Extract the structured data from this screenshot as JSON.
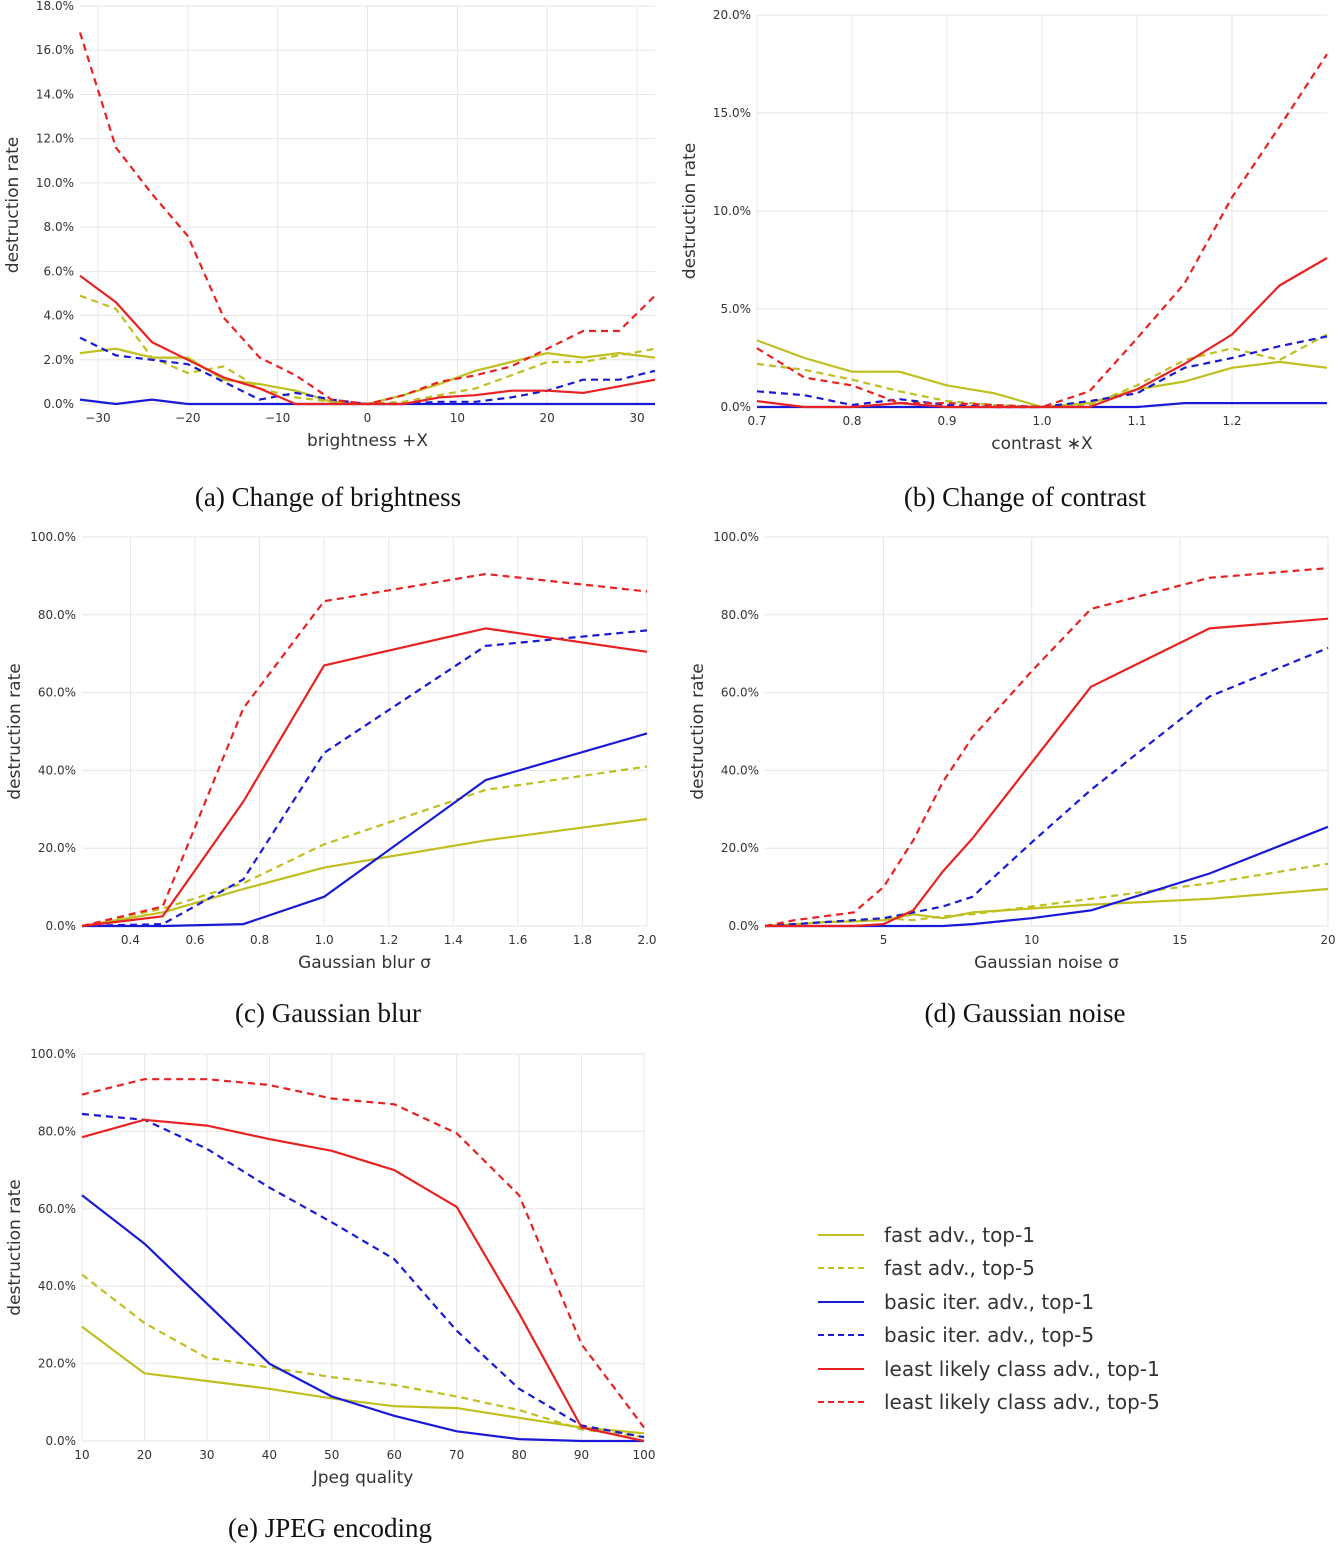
{
  "series_styles": [
    {
      "key": "fast_top1",
      "color": "#bfbf1f",
      "dash": false
    },
    {
      "key": "fast_top5",
      "color": "#bfbf1f",
      "dash": true
    },
    {
      "key": "iter_top1",
      "color": "#1a1ad6",
      "dash": false
    },
    {
      "key": "iter_top5",
      "color": "#1a1ad6",
      "dash": true
    },
    {
      "key": "ll_top1",
      "color": "#e82222",
      "dash": false
    },
    {
      "key": "ll_top5",
      "color": "#e82222",
      "dash": true
    }
  ],
  "legend": {
    "items": [
      {
        "label": "fast adv., top-1",
        "color": "#bfbf1f",
        "dash": false
      },
      {
        "label": "fast adv., top-5",
        "color": "#bfbf1f",
        "dash": true
      },
      {
        "label": "basic iter. adv., top-1",
        "color": "#1a1ad6",
        "dash": false
      },
      {
        "label": "basic iter. adv., top-5",
        "color": "#1a1ad6",
        "dash": true
      },
      {
        "label": "least likely class adv., top-1",
        "color": "#e82222",
        "dash": false
      },
      {
        "label": "least likely class adv., top-5",
        "color": "#e82222",
        "dash": true
      }
    ]
  },
  "chart_data": [
    {
      "type": "line",
      "id": "a",
      "caption": "(a) Change of brightness",
      "xlabel": "brightness +X",
      "ylabel": "destruction rate",
      "xlim": [
        -32,
        32
      ],
      "ylim": [
        0,
        18
      ],
      "xticks": [
        -30,
        -20,
        -10,
        0,
        10,
        20,
        30
      ],
      "xtick_labels": [
        "−30",
        "−20",
        "−10",
        "0",
        "10",
        "20",
        "30"
      ],
      "yticks": [
        0,
        2,
        4,
        6,
        8,
        10,
        12,
        14,
        16,
        18
      ],
      "ytick_labels": [
        "0.0%",
        "2.0%",
        "4.0%",
        "6.0%",
        "8.0%",
        "10.0%",
        "12.0%",
        "14.0%",
        "16.0%",
        "18.0%"
      ],
      "x": [
        -32,
        -28,
        -24,
        -20,
        -16,
        -12,
        -8,
        -4,
        0,
        4,
        8,
        12,
        16,
        20,
        24,
        28,
        32
      ],
      "series": [
        {
          "name": "fast adv., top-1",
          "values": [
            2.3,
            2.5,
            2.1,
            2.1,
            1.1,
            0.9,
            0.6,
            0.1,
            0,
            0.4,
            0.9,
            1.5,
            1.9,
            2.3,
            2.1,
            2.3,
            2.1
          ]
        },
        {
          "name": "fast adv., top-5",
          "values": [
            4.9,
            4.3,
            2.1,
            1.4,
            1.7,
            0.7,
            0.3,
            0.1,
            0,
            0.1,
            0.4,
            0.7,
            1.3,
            1.9,
            1.9,
            2.2,
            2.5
          ]
        },
        {
          "name": "basic iter. adv., top-1",
          "values": [
            0.2,
            0.0,
            0.2,
            0.0,
            0.0,
            0.0,
            0.0,
            0.0,
            0,
            0.0,
            0.0,
            0.0,
            0.0,
            0.0,
            0.0,
            0.0,
            0.0
          ]
        },
        {
          "name": "basic iter. adv., top-5",
          "values": [
            3.0,
            2.2,
            2.0,
            1.8,
            1.0,
            0.2,
            0.5,
            0.2,
            0,
            0.0,
            0.1,
            0.1,
            0.3,
            0.6,
            1.1,
            1.1,
            1.5
          ]
        },
        {
          "name": "least likely class adv., top-1",
          "values": [
            5.8,
            4.6,
            2.8,
            2.0,
            1.2,
            0.7,
            0.0,
            0.0,
            0,
            0.0,
            0.3,
            0.4,
            0.6,
            0.6,
            0.5,
            0.8,
            1.1
          ]
        },
        {
          "name": "least likely class adv., top-5",
          "values": [
            16.8,
            11.6,
            9.5,
            7.6,
            3.9,
            2.1,
            1.3,
            0.2,
            0,
            0.4,
            1.0,
            1.3,
            1.7,
            2.5,
            3.3,
            3.3,
            4.9
          ]
        }
      ]
    },
    {
      "type": "line",
      "id": "b",
      "caption": "(b) Change of contrast",
      "xlabel": "contrast ∗X",
      "ylabel": "destruction rate",
      "xlim": [
        0.7,
        1.3
      ],
      "ylim": [
        0,
        20
      ],
      "xticks": [
        0.7,
        0.8,
        0.9,
        1.0,
        1.1,
        1.2
      ],
      "xtick_labels": [
        "0.7",
        "0.8",
        "0.9",
        "1.0",
        "1.1",
        "1.2"
      ],
      "yticks": [
        0,
        5,
        10,
        15,
        20
      ],
      "ytick_labels": [
        "0.0%",
        "5.0%",
        "10.0%",
        "15.0%",
        "20.0%"
      ],
      "x": [
        0.7,
        0.75,
        0.8,
        0.85,
        0.9,
        0.95,
        1.0,
        1.05,
        1.1,
        1.15,
        1.2,
        1.25,
        1.3
      ],
      "series": [
        {
          "name": "fast adv., top-1",
          "values": [
            3.4,
            2.5,
            1.8,
            1.8,
            1.1,
            0.7,
            0.0,
            0.2,
            0.9,
            1.3,
            2.0,
            2.3,
            2.0
          ]
        },
        {
          "name": "fast adv., top-5",
          "values": [
            2.2,
            1.9,
            1.4,
            0.8,
            0.3,
            0.1,
            0.0,
            0.1,
            1.1,
            2.4,
            3.0,
            2.4,
            3.7
          ]
        },
        {
          "name": "basic iter. adv., top-1",
          "values": [
            0.0,
            0.0,
            0.0,
            0.0,
            0.0,
            0.0,
            0.0,
            0.0,
            0.0,
            0.2,
            0.2,
            0.2,
            0.2
          ]
        },
        {
          "name": "basic iter. adv., top-5",
          "values": [
            0.8,
            0.6,
            0.1,
            0.4,
            0.1,
            0.0,
            0.0,
            0.3,
            0.7,
            2.0,
            2.5,
            3.1,
            3.6
          ]
        },
        {
          "name": "least likely class adv., top-1",
          "values": [
            0.3,
            0.0,
            0.0,
            0.2,
            0.0,
            0.0,
            0.0,
            0.0,
            0.9,
            2.2,
            3.7,
            6.2,
            7.6
          ]
        },
        {
          "name": "least likely class adv., top-5",
          "values": [
            3.0,
            1.5,
            1.1,
            0.2,
            0.2,
            0.1,
            0.0,
            0.8,
            3.5,
            6.3,
            10.7,
            14.3,
            18.0
          ]
        }
      ]
    },
    {
      "type": "line",
      "id": "c",
      "caption": "(c) Gaussian blur",
      "xlabel": "Gaussian blur σ",
      "ylabel": "destruction rate",
      "xlim": [
        0.25,
        2.0
      ],
      "ylim": [
        0,
        100
      ],
      "xticks": [
        0.4,
        0.6,
        0.8,
        1.0,
        1.2,
        1.4,
        1.6,
        1.8,
        2.0
      ],
      "xtick_labels": [
        "0.4",
        "0.6",
        "0.8",
        "1.0",
        "1.2",
        "1.4",
        "1.6",
        "1.8",
        "2.0"
      ],
      "yticks": [
        0,
        20,
        40,
        60,
        80,
        100
      ],
      "ytick_labels": [
        "0.0%",
        "20.0%",
        "40.0%",
        "60.0%",
        "80.0%",
        "100.0%"
      ],
      "x": [
        0.25,
        0.5,
        0.75,
        1.0,
        1.5,
        2.0
      ],
      "series": [
        {
          "name": "fast adv., top-1",
          "values": [
            0.0,
            3.5,
            9.5,
            15.0,
            22.0,
            27.5
          ]
        },
        {
          "name": "fast adv., top-5",
          "values": [
            0.0,
            4.5,
            11.0,
            21.0,
            35.0,
            41.0
          ]
        },
        {
          "name": "basic iter. adv., top-1",
          "values": [
            0.0,
            0.0,
            0.5,
            7.5,
            37.5,
            49.5
          ]
        },
        {
          "name": "basic iter. adv., top-5",
          "values": [
            0.0,
            0.5,
            12.0,
            44.5,
            72.0,
            76.0
          ]
        },
        {
          "name": "least likely class adv., top-1",
          "values": [
            0.0,
            2.5,
            32.0,
            67.0,
            76.5,
            70.5
          ]
        },
        {
          "name": "least likely class adv., top-5",
          "values": [
            0.0,
            5.0,
            56.0,
            83.5,
            90.5,
            86.0
          ]
        }
      ]
    },
    {
      "type": "line",
      "id": "d",
      "caption": "(d) Gaussian noise",
      "xlabel": "Gaussian noise σ",
      "ylabel": "destruction rate",
      "xlim": [
        1,
        20
      ],
      "ylim": [
        0,
        100
      ],
      "xticks": [
        5,
        10,
        15,
        20
      ],
      "xtick_labels": [
        "5",
        "10",
        "15",
        "20"
      ],
      "yticks": [
        0,
        20,
        40,
        60,
        80,
        100
      ],
      "ytick_labels": [
        "0.0%",
        "20.0%",
        "40.0%",
        "60.0%",
        "80.0%",
        "100.0%"
      ],
      "x": [
        1,
        2,
        3,
        4,
        5,
        6,
        7,
        8,
        10,
        12,
        16,
        20
      ],
      "series": [
        {
          "name": "fast adv., top-1",
          "values": [
            0.0,
            0.5,
            1.0,
            1.2,
            1.5,
            3.0,
            2.0,
            3.5,
            4.5,
            5.5,
            7.0,
            9.5
          ]
        },
        {
          "name": "fast adv., top-5",
          "values": [
            0.0,
            0.5,
            1.0,
            1.5,
            2.0,
            1.5,
            2.5,
            3.0,
            5.0,
            7.0,
            11.0,
            16.0
          ]
        },
        {
          "name": "basic iter. adv., top-1",
          "values": [
            0.0,
            0.0,
            0.0,
            0.0,
            0.0,
            0.0,
            0.0,
            0.5,
            2.0,
            4.0,
            13.5,
            25.5
          ]
        },
        {
          "name": "basic iter. adv., top-5",
          "values": [
            0.0,
            0.5,
            1.0,
            1.5,
            2.0,
            3.5,
            5.0,
            7.5,
            21.5,
            35.0,
            59.0,
            71.5
          ]
        },
        {
          "name": "least likely class adv., top-1",
          "values": [
            0.0,
            0.0,
            0.0,
            0.0,
            0.5,
            4.0,
            14.0,
            22.5,
            42.0,
            61.5,
            76.5,
            79.0
          ]
        },
        {
          "name": "least likely class adv., top-5",
          "values": [
            0.0,
            1.5,
            2.5,
            3.5,
            10.0,
            22.0,
            37.0,
            48.5,
            65.5,
            81.5,
            89.5,
            92.0
          ]
        }
      ]
    },
    {
      "type": "line",
      "id": "e",
      "caption": "(e) JPEG encoding",
      "xlabel": "Jpeg quality",
      "ylabel": "destruction rate",
      "xlim": [
        10,
        100
      ],
      "ylim": [
        0,
        100
      ],
      "xticks": [
        10,
        20,
        30,
        40,
        50,
        60,
        70,
        80,
        90,
        100
      ],
      "xtick_labels": [
        "10",
        "20",
        "30",
        "40",
        "50",
        "60",
        "70",
        "80",
        "90",
        "100"
      ],
      "yticks": [
        0,
        20,
        40,
        60,
        80,
        100
      ],
      "ytick_labels": [
        "0.0%",
        "20.0%",
        "40.0%",
        "60.0%",
        "80.0%",
        "100.0%"
      ],
      "x": [
        10,
        20,
        30,
        40,
        50,
        60,
        70,
        80,
        90,
        100
      ],
      "series": [
        {
          "name": "fast adv., top-1",
          "values": [
            29.5,
            17.5,
            15.5,
            13.5,
            11.0,
            9.0,
            8.5,
            6.0,
            3.5,
            2.0
          ]
        },
        {
          "name": "fast adv., top-5",
          "values": [
            43.0,
            30.5,
            21.5,
            19.0,
            16.5,
            14.5,
            11.5,
            8.0,
            3.0,
            1.0
          ]
        },
        {
          "name": "basic iter. adv., top-1",
          "values": [
            63.5,
            51.0,
            35.5,
            20.0,
            11.5,
            6.5,
            2.5,
            0.5,
            0.0,
            0.0
          ]
        },
        {
          "name": "basic iter. adv., top-5",
          "values": [
            84.5,
            83.0,
            75.5,
            65.5,
            56.5,
            47.0,
            28.5,
            13.5,
            4.0,
            1.0
          ]
        },
        {
          "name": "least likely class adv., top-1",
          "values": [
            78.5,
            83.0,
            81.5,
            78.0,
            75.0,
            70.0,
            60.5,
            33.0,
            3.5,
            0.0
          ]
        },
        {
          "name": "least likely class adv., top-5",
          "values": [
            89.5,
            93.5,
            93.5,
            92.0,
            88.5,
            87.0,
            79.5,
            63.5,
            25.0,
            3.5
          ]
        }
      ]
    }
  ]
}
